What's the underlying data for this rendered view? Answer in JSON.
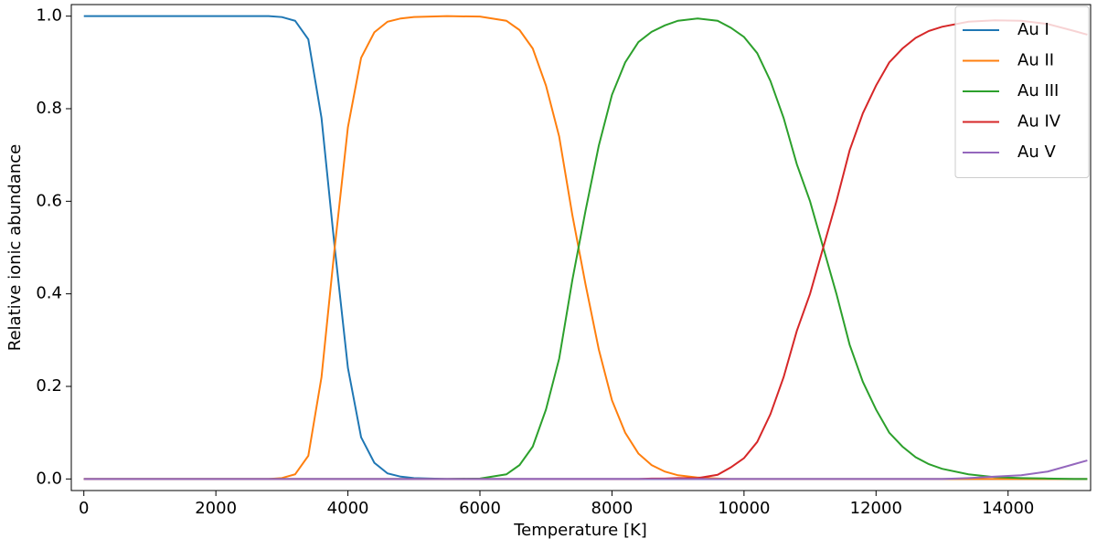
{
  "chart_data": {
    "type": "line",
    "xlabel": "Temperature [K]",
    "ylabel": "Relative ionic abundance",
    "x": [
      0,
      1000,
      2000,
      2800,
      3000,
      3200,
      3400,
      3600,
      3800,
      4000,
      4200,
      4400,
      4600,
      4800,
      5000,
      5500,
      6000,
      6400,
      6600,
      6800,
      7000,
      7200,
      7400,
      7600,
      7800,
      8000,
      8200,
      8400,
      8600,
      8800,
      9000,
      9300,
      9600,
      9800,
      10000,
      10200,
      10400,
      10600,
      10800,
      11000,
      11200,
      11400,
      11600,
      11800,
      12000,
      12200,
      12400,
      12600,
      12800,
      13000,
      13400,
      13800,
      14200,
      14600,
      15000,
      15200
    ],
    "series": [
      {
        "name": "Au I",
        "color": "#1f77b4",
        "values": [
          1,
          1,
          1,
          1,
          0.998,
          0.99,
          0.95,
          0.78,
          0.5,
          0.24,
          0.09,
          0.035,
          0.012,
          0.005,
          0.002,
          0,
          0,
          0,
          0,
          0,
          0,
          0,
          0,
          0,
          0,
          0,
          0,
          0,
          0,
          0,
          0,
          0,
          0,
          0,
          0,
          0,
          0,
          0,
          0,
          0,
          0,
          0,
          0,
          0,
          0,
          0,
          0,
          0,
          0,
          0,
          0,
          0,
          0,
          0,
          0,
          0
        ]
      },
      {
        "name": "Au II",
        "color": "#ff7f0e",
        "values": [
          0,
          0,
          0,
          0,
          0.002,
          0.01,
          0.05,
          0.22,
          0.5,
          0.76,
          0.91,
          0.965,
          0.988,
          0.995,
          0.998,
          1,
          0.999,
          0.99,
          0.97,
          0.93,
          0.85,
          0.74,
          0.57,
          0.42,
          0.28,
          0.17,
          0.1,
          0.055,
          0.03,
          0.016,
          0.008,
          0.003,
          0.001,
          0,
          0,
          0,
          0,
          0,
          0,
          0,
          0,
          0,
          0,
          0,
          0,
          0,
          0,
          0,
          0,
          0,
          0,
          0,
          0,
          0,
          0,
          0
        ]
      },
      {
        "name": "Au III",
        "color": "#2ca02c",
        "values": [
          0,
          0,
          0,
          0,
          0,
          0,
          0,
          0,
          0,
          0,
          0,
          0,
          0,
          0,
          0,
          0,
          0.001,
          0.01,
          0.03,
          0.07,
          0.15,
          0.26,
          0.43,
          0.58,
          0.72,
          0.83,
          0.9,
          0.944,
          0.966,
          0.98,
          0.99,
          0.995,
          0.99,
          0.975,
          0.955,
          0.92,
          0.86,
          0.78,
          0.68,
          0.6,
          0.5,
          0.4,
          0.29,
          0.21,
          0.15,
          0.1,
          0.07,
          0.047,
          0.032,
          0.022,
          0.01,
          0.004,
          0.002,
          0.001,
          0,
          0
        ]
      },
      {
        "name": "Au IV",
        "color": "#d62728",
        "values": [
          0,
          0,
          0,
          0,
          0,
          0,
          0,
          0,
          0,
          0,
          0,
          0,
          0,
          0,
          0,
          0,
          0,
          0,
          0,
          0,
          0,
          0,
          0,
          0,
          0,
          0,
          0,
          0,
          0.001,
          0.001,
          0.002,
          0.002,
          0.009,
          0.025,
          0.045,
          0.08,
          0.14,
          0.22,
          0.32,
          0.4,
          0.5,
          0.6,
          0.71,
          0.79,
          0.85,
          0.9,
          0.93,
          0.953,
          0.968,
          0.977,
          0.988,
          0.991,
          0.99,
          0.983,
          0.968,
          0.96
        ]
      },
      {
        "name": "Au V",
        "color": "#9467bd",
        "values": [
          0,
          0,
          0,
          0,
          0,
          0,
          0,
          0,
          0,
          0,
          0,
          0,
          0,
          0,
          0,
          0,
          0,
          0,
          0,
          0,
          0,
          0,
          0,
          0,
          0,
          0,
          0,
          0,
          0,
          0,
          0,
          0,
          0,
          0,
          0,
          0,
          0,
          0,
          0,
          0,
          0,
          0,
          0,
          0,
          0,
          0,
          0,
          0,
          0,
          0,
          0.002,
          0.005,
          0.008,
          0.016,
          0.032,
          0.04
        ]
      }
    ],
    "xlim": [
      -190,
      15250
    ],
    "ylim": [
      -0.025,
      1.025
    ],
    "xticks": [
      0,
      2000,
      4000,
      6000,
      8000,
      10000,
      12000,
      14000
    ],
    "yticks": [
      {
        "value": 0,
        "label": "0.0"
      },
      0.2,
      0.4,
      0.6,
      0.8,
      {
        "value": 1,
        "label": "1.0"
      }
    ],
    "grid": false,
    "legend": "upper right"
  }
}
